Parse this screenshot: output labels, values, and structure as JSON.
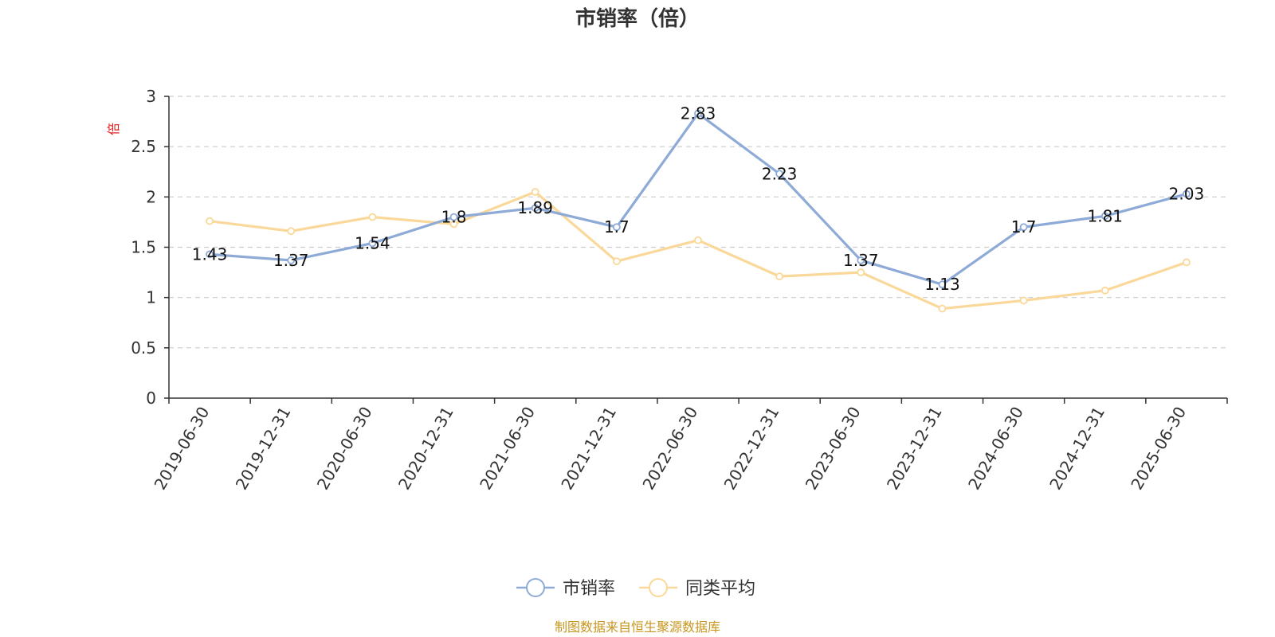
{
  "chart_data": {
    "type": "line",
    "title": "市销率（倍）",
    "y_unit": "倍",
    "ylim": [
      0,
      3
    ],
    "y_ticks": [
      "0",
      "0.5",
      "1",
      "1.5",
      "2",
      "2.5",
      "3"
    ],
    "grid": true,
    "legend_position": "bottom-center",
    "categories": [
      "2019-06-30",
      "2019-12-31",
      "2020-06-30",
      "2020-12-31",
      "2021-06-30",
      "2021-12-31",
      "2022-06-30",
      "2022-12-31",
      "2023-06-30",
      "2023-12-31",
      "2024-06-30",
      "2024-12-31",
      "2025-06-30"
    ],
    "series": [
      {
        "name": "市销率",
        "color": "#8eaad6",
        "values": [
          1.43,
          1.37,
          1.54,
          1.8,
          1.89,
          1.7,
          2.83,
          2.23,
          1.37,
          1.13,
          1.7,
          1.81,
          2.03
        ],
        "labels": [
          "1.43",
          "1.37",
          "1.54",
          "1.8",
          "1.89",
          "1.7",
          "2.83",
          "2.23",
          "1.37",
          "1.13",
          "1.7",
          "1.81",
          "2.03"
        ]
      },
      {
        "name": "同类平均",
        "color": "#f9d899",
        "values": [
          1.76,
          1.66,
          1.8,
          1.73,
          2.05,
          1.36,
          1.57,
          1.21,
          1.25,
          0.89,
          0.97,
          1.07,
          1.35
        ]
      }
    ],
    "source": "制图数据来自恒生聚源数据库"
  }
}
